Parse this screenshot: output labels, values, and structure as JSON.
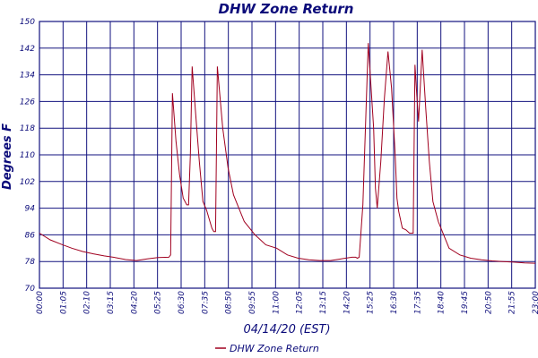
{
  "chart_data": {
    "type": "line",
    "title": "DHW Zone Return",
    "xlabel": "04/14/20 (EST)",
    "ylabel": "Degrees F",
    "ylim": [
      70,
      150
    ],
    "yticks": [
      70,
      78,
      86,
      94,
      102,
      110,
      118,
      126,
      134,
      142,
      150
    ],
    "xlim": [
      "00:00",
      "23:00"
    ],
    "xticks": [
      "00:00",
      "01:05",
      "02:10",
      "03:15",
      "04:20",
      "05:25",
      "06:30",
      "07:35",
      "08:50",
      "09:55",
      "11:00",
      "12:05",
      "13:15",
      "14:20",
      "15:25",
      "16:30",
      "17:35",
      "18:40",
      "19:45",
      "20:50",
      "21:55",
      "23:00"
    ],
    "grid": true,
    "legend_position": "bottom-center",
    "series": [
      {
        "name": "DHW Zone Return",
        "color": "#a0001f",
        "x": [
          "00:00",
          "00:30",
          "01:00",
          "01:30",
          "02:00",
          "02:30",
          "03:00",
          "03:30",
          "04:00",
          "04:30",
          "05:00",
          "05:30",
          "06:00",
          "06:05",
          "06:10",
          "06:20",
          "06:30",
          "06:40",
          "06:50",
          "06:55",
          "07:00",
          "07:05",
          "07:15",
          "07:25",
          "07:35",
          "07:45",
          "08:00",
          "08:05",
          "08:10",
          "08:15",
          "08:30",
          "08:45",
          "09:00",
          "09:30",
          "10:00",
          "10:30",
          "11:00",
          "11:30",
          "12:00",
          "12:30",
          "13:00",
          "13:30",
          "14:00",
          "14:30",
          "14:35",
          "14:40",
          "14:45",
          "14:50",
          "15:00",
          "15:15",
          "15:30",
          "15:35",
          "15:40",
          "15:50",
          "16:00",
          "16:10",
          "16:20",
          "16:30",
          "16:35",
          "16:40",
          "16:50",
          "17:00",
          "17:10",
          "17:20",
          "17:25",
          "17:30",
          "17:35",
          "17:45",
          "17:55",
          "18:05",
          "18:15",
          "18:30",
          "18:45",
          "19:00",
          "19:30",
          "20:00",
          "20:30",
          "21:00",
          "21:30",
          "22:00",
          "22:30",
          "23:00"
        ],
        "y": [
          86.5,
          84.5,
          83.2,
          82.0,
          81.0,
          80.3,
          79.7,
          79.2,
          78.6,
          78.3,
          78.8,
          79.2,
          79.3,
          80.0,
          128.5,
          114,
          104,
          97,
          95,
          95,
          110,
          136.5,
          122,
          108,
          96,
          93.5,
          88,
          87,
          87,
          136.5,
          118,
          106,
          98,
          90,
          86,
          83,
          82,
          80,
          79,
          78.5,
          78.3,
          78.3,
          78.8,
          79.3,
          79.3,
          79.3,
          79.0,
          79.3,
          95,
          143.5,
          118,
          100,
          94,
          108,
          127,
          141,
          130,
          110,
          97,
          93,
          88,
          87.5,
          86.5,
          86.5,
          137,
          128,
          120,
          141.5,
          124,
          108,
          96,
          90,
          86,
          82,
          80,
          79,
          78.5,
          78.2,
          78.0,
          77.8,
          77.6,
          77.5
        ]
      }
    ]
  }
}
